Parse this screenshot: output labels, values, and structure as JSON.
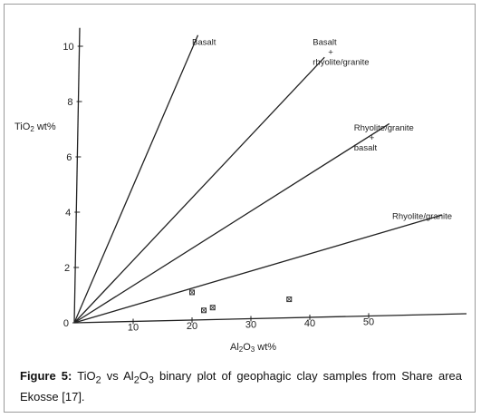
{
  "chart_data": {
    "type": "scatter",
    "title": "",
    "ylabel": {
      "main": "TiO",
      "sub": "2",
      "rest": " wt%"
    },
    "xlabel": {
      "a": "Al",
      "b": "2",
      "c": "O",
      "d": "3",
      "e": " wt%"
    },
    "xlim": [
      0,
      66
    ],
    "ylim": [
      0,
      10.6
    ],
    "x_ticks": [
      {
        "value": 10,
        "label": "10"
      },
      {
        "value": 20,
        "label": "20"
      },
      {
        "value": 30,
        "label": "30"
      },
      {
        "value": 40,
        "label": "40"
      },
      {
        "value": 50,
        "label": "50"
      }
    ],
    "y_ticks": [
      {
        "value": 0,
        "label": "0"
      },
      {
        "value": 2,
        "label": "2"
      },
      {
        "value": 4,
        "label": "4"
      },
      {
        "value": 6,
        "label": "6"
      },
      {
        "value": 8,
        "label": "8"
      },
      {
        "value": 10,
        "label": "10"
      }
    ],
    "points": [
      {
        "x": 20,
        "y": 1.1
      },
      {
        "x": 22,
        "y": 0.45
      },
      {
        "x": 23.5,
        "y": 0.55
      },
      {
        "x": 36.5,
        "y": 0.85
      }
    ],
    "boundary_lines": [
      {
        "x1": 0,
        "y1": 0,
        "x2": 21,
        "y2": 10.4
      },
      {
        "x1": 0,
        "y1": 0,
        "x2": 42.5,
        "y2": 9.6
      },
      {
        "x1": 0,
        "y1": 0,
        "x2": 53.5,
        "y2": 7.2
      },
      {
        "x1": 0,
        "y1": 0,
        "x2": 62.5,
        "y2": 3.9
      }
    ],
    "annotations": [
      {
        "lines": [
          "Basalt"
        ],
        "x": 20,
        "y": 10.05
      },
      {
        "lines": [
          "Basalt",
          "+",
          "rhyolite/granite"
        ],
        "x": 40.5,
        "y": 10.05
      },
      {
        "lines": [
          "Rhyolite/granite",
          "+",
          "basalt"
        ],
        "x": 47.5,
        "y": 6.95
      },
      {
        "lines": [
          "Rhyolite/granite"
        ],
        "x": 54,
        "y": 3.75
      }
    ]
  },
  "caption": {
    "figure_label": "Figure 5:",
    "text_1": " TiO",
    "sub_1": "2",
    "text_2": " vs Al",
    "sub_2": "2",
    "text_3": "O",
    "sub_3": "3",
    "text_4": " binary plot of geophagic clay samples from Share area Ekosse [17]."
  }
}
